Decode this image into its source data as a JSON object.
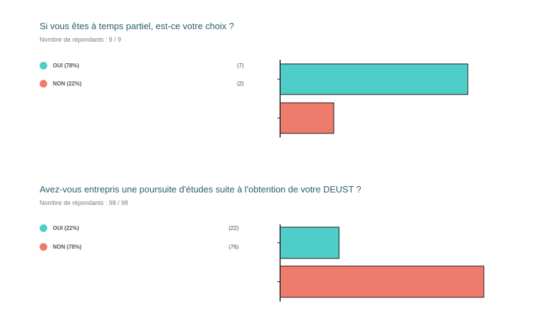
{
  "surveys": [
    {
      "question": "Si vous êtes à temps partiel, est-ce votre choix ?",
      "respondents": "Nombre de répondants : 9 / 9",
      "legend": [
        {
          "label": "OUI (78%)",
          "count": "(7)",
          "color": "#4ecdc9"
        },
        {
          "label": "NON (22%)",
          "count": "(2)",
          "color": "#ef7b6c"
        }
      ]
    },
    {
      "question": "Avez-vous entrepris une poursuite d'études suite à l'obtention de votre DEUST ?",
      "respondents": "Nombre de répondants : 98 / 98",
      "legend": [
        {
          "label": "OUI (22%)",
          "count": "(22)",
          "color": "#4ecdc9"
        },
        {
          "label": "NON (78%)",
          "count": "(76)",
          "color": "#ef7b6c"
        }
      ]
    }
  ],
  "chart_data": [
    {
      "type": "bar",
      "orientation": "horizontal",
      "title": "Si vous êtes à temps partiel, est-ce votre choix ?",
      "categories": [
        "OUI",
        "NON"
      ],
      "values": [
        7,
        2
      ],
      "percentages": [
        78,
        22
      ],
      "colors": [
        "#4ecdc9",
        "#ef7b6c"
      ],
      "xlim": [
        0,
        7
      ]
    },
    {
      "type": "bar",
      "orientation": "horizontal",
      "title": "Avez-vous entrepris une poursuite d'études suite à l'obtention de votre DEUST ?",
      "categories": [
        "OUI",
        "NON"
      ],
      "values": [
        22,
        76
      ],
      "percentages": [
        22,
        78
      ],
      "colors": [
        "#4ecdc9",
        "#ef7b6c"
      ],
      "xlim": [
        0,
        76
      ]
    }
  ]
}
